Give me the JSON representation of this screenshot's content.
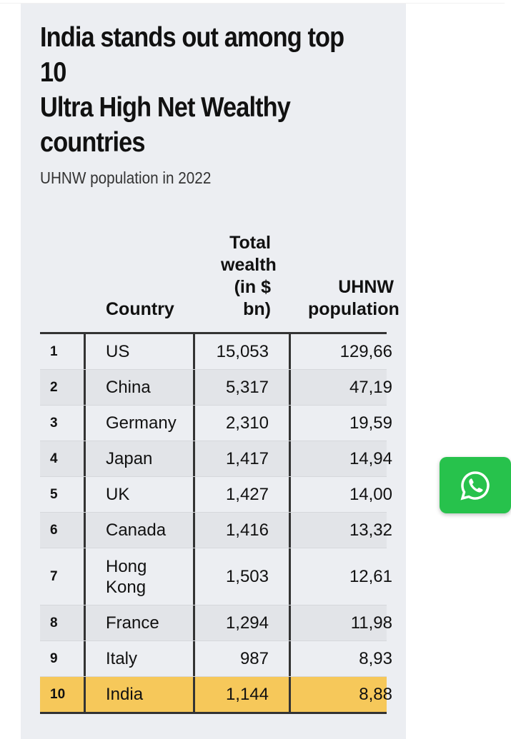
{
  "title": "India stands out among top 10\nUltra High Net Wealthy countries",
  "subtitle": "UHNW population in 2022",
  "table": {
    "headers": [
      "",
      "Country",
      "Total wealth (in $ bn)",
      "UHNW population"
    ],
    "rows": [
      {
        "rank": "1",
        "country": "US",
        "wealth": "15,053",
        "pop": "129,66"
      },
      {
        "rank": "2",
        "country": "China",
        "wealth": "5,317",
        "pop": "47,19"
      },
      {
        "rank": "3",
        "country": "Germany",
        "wealth": "2,310",
        "pop": "19,59"
      },
      {
        "rank": "4",
        "country": "Japan",
        "wealth": "1,417",
        "pop": "14,94"
      },
      {
        "rank": "5",
        "country": "UK",
        "wealth": "1,427",
        "pop": "14,00"
      },
      {
        "rank": "6",
        "country": "Canada",
        "wealth": "1,416",
        "pop": "13,32"
      },
      {
        "rank": "7",
        "country": "Hong Kong",
        "wealth": "1,503",
        "pop": "12,61"
      },
      {
        "rank": "8",
        "country": "France",
        "wealth": "1,294",
        "pop": "11,98"
      },
      {
        "rank": "9",
        "country": "Italy",
        "wealth": "987",
        "pop": "8,93"
      },
      {
        "rank": "10",
        "country": "India",
        "wealth": "1,144",
        "pop": "8,88"
      }
    ]
  },
  "colors": {
    "highlight": "#f6c85a",
    "whatsapp": "#27c24c"
  },
  "icons": {
    "share": "whatsapp-icon"
  }
}
